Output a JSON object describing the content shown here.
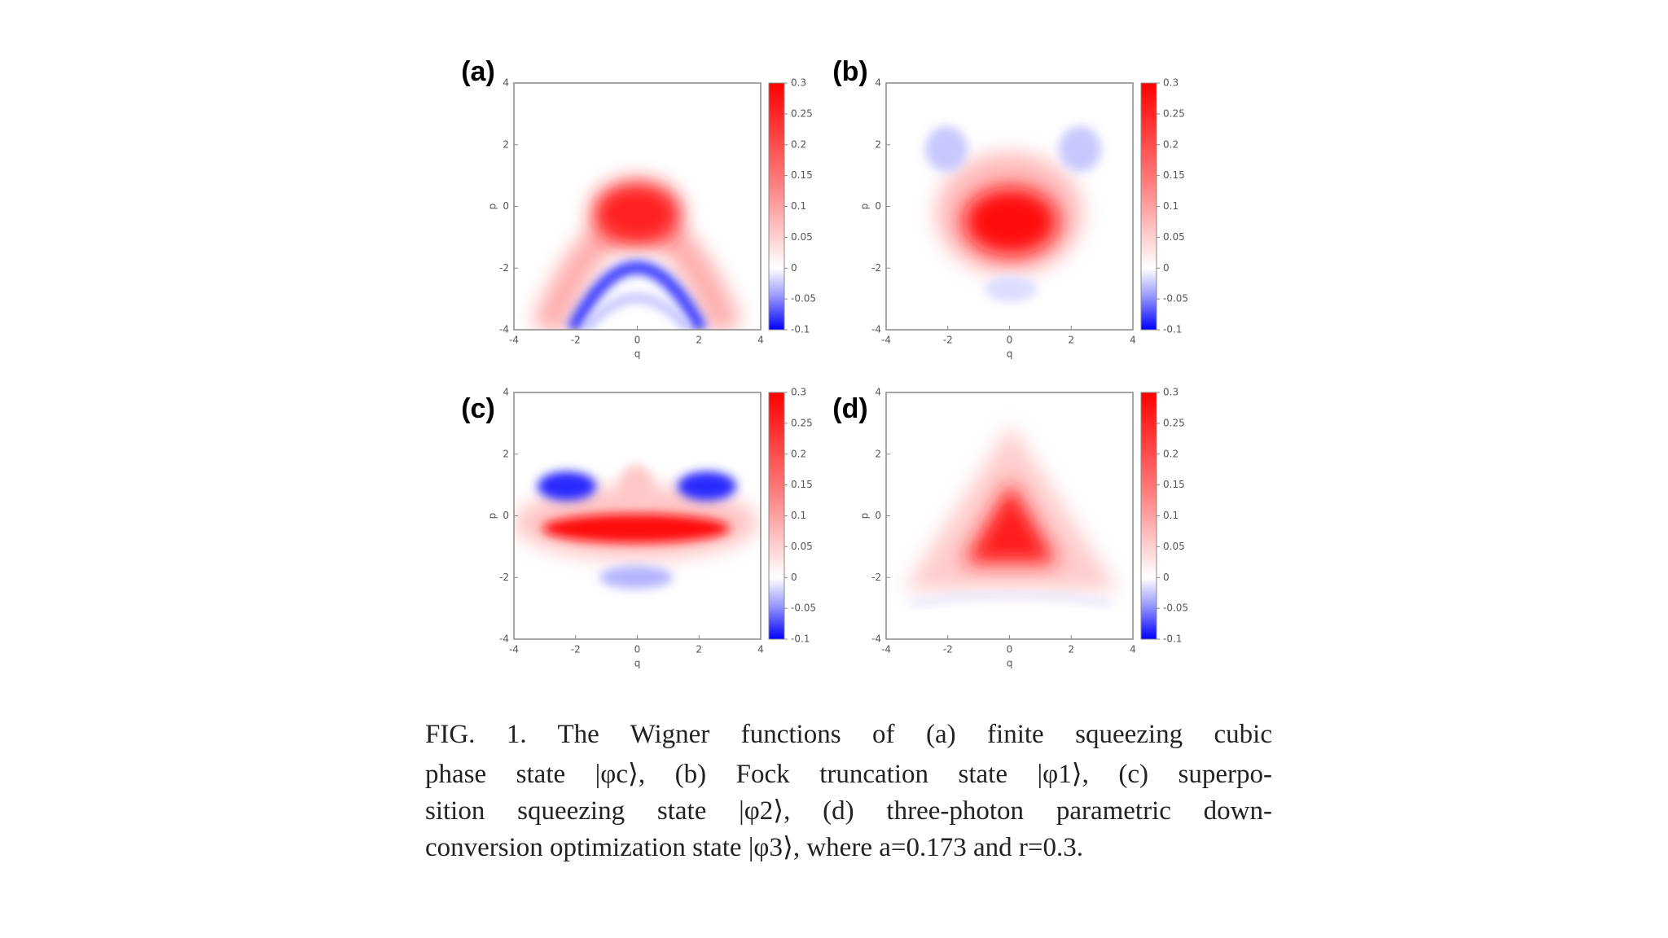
{
  "chart_data": [
    {
      "type": "heatmap",
      "panel_label": "(a)",
      "xlabel": "q",
      "ylabel": "p",
      "xlim": [
        -4,
        4
      ],
      "ylim": [
        -4,
        4
      ],
      "xticks": [
        -4,
        -2,
        0,
        2,
        4
      ],
      "yticks": [
        -4,
        -2,
        0,
        2,
        4
      ],
      "clim": [
        -0.1,
        0.3
      ],
      "cticks": [
        0.3,
        0.25,
        0.2,
        0.15,
        0.1,
        0.05,
        0,
        -0.05,
        -0.1
      ]
    },
    {
      "type": "heatmap",
      "panel_label": "(b)",
      "xlabel": "q",
      "ylabel": "p",
      "xlim": [
        -4,
        4
      ],
      "ylim": [
        -4,
        4
      ],
      "xticks": [
        -4,
        -2,
        0,
        2,
        4
      ],
      "yticks": [
        -4,
        -2,
        0,
        2,
        4
      ],
      "clim": [
        -0.1,
        0.3
      ],
      "cticks": [
        0.3,
        0.25,
        0.2,
        0.15,
        0.1,
        0.05,
        0,
        -0.05,
        -0.1
      ]
    },
    {
      "type": "heatmap",
      "panel_label": "(c)",
      "xlabel": "q",
      "ylabel": "p",
      "xlim": [
        -4,
        4
      ],
      "ylim": [
        -4,
        4
      ],
      "xticks": [
        -4,
        -2,
        0,
        2,
        4
      ],
      "yticks": [
        -4,
        -2,
        0,
        2,
        4
      ],
      "clim": [
        -0.1,
        0.3
      ],
      "cticks": [
        0.3,
        0.25,
        0.2,
        0.15,
        0.1,
        0.05,
        0,
        -0.05,
        -0.1
      ]
    },
    {
      "type": "heatmap",
      "panel_label": "(d)",
      "xlabel": "q",
      "ylabel": "p",
      "xlim": [
        -4,
        4
      ],
      "ylim": [
        -4,
        4
      ],
      "xticks": [
        -4,
        -2,
        0,
        2,
        4
      ],
      "yticks": [
        -4,
        -2,
        0,
        2,
        4
      ],
      "clim": [
        -0.1,
        0.3
      ],
      "cticks": [
        0.3,
        0.25,
        0.2,
        0.15,
        0.1,
        0.05,
        0,
        -0.05,
        -0.1
      ]
    }
  ],
  "caption": {
    "lines": [
      "FIG. 1.  The Wigner functions of (a) finite squeezing cubic",
      "phase state |φc⟩, (b) Fock truncation state |φ1⟩, (c) superpo-",
      "sition squeezing state |φ2⟩, (d) three-photon parametric down-",
      "conversion optimization state |φ3⟩, where a=0.173 and r=0.3."
    ]
  }
}
